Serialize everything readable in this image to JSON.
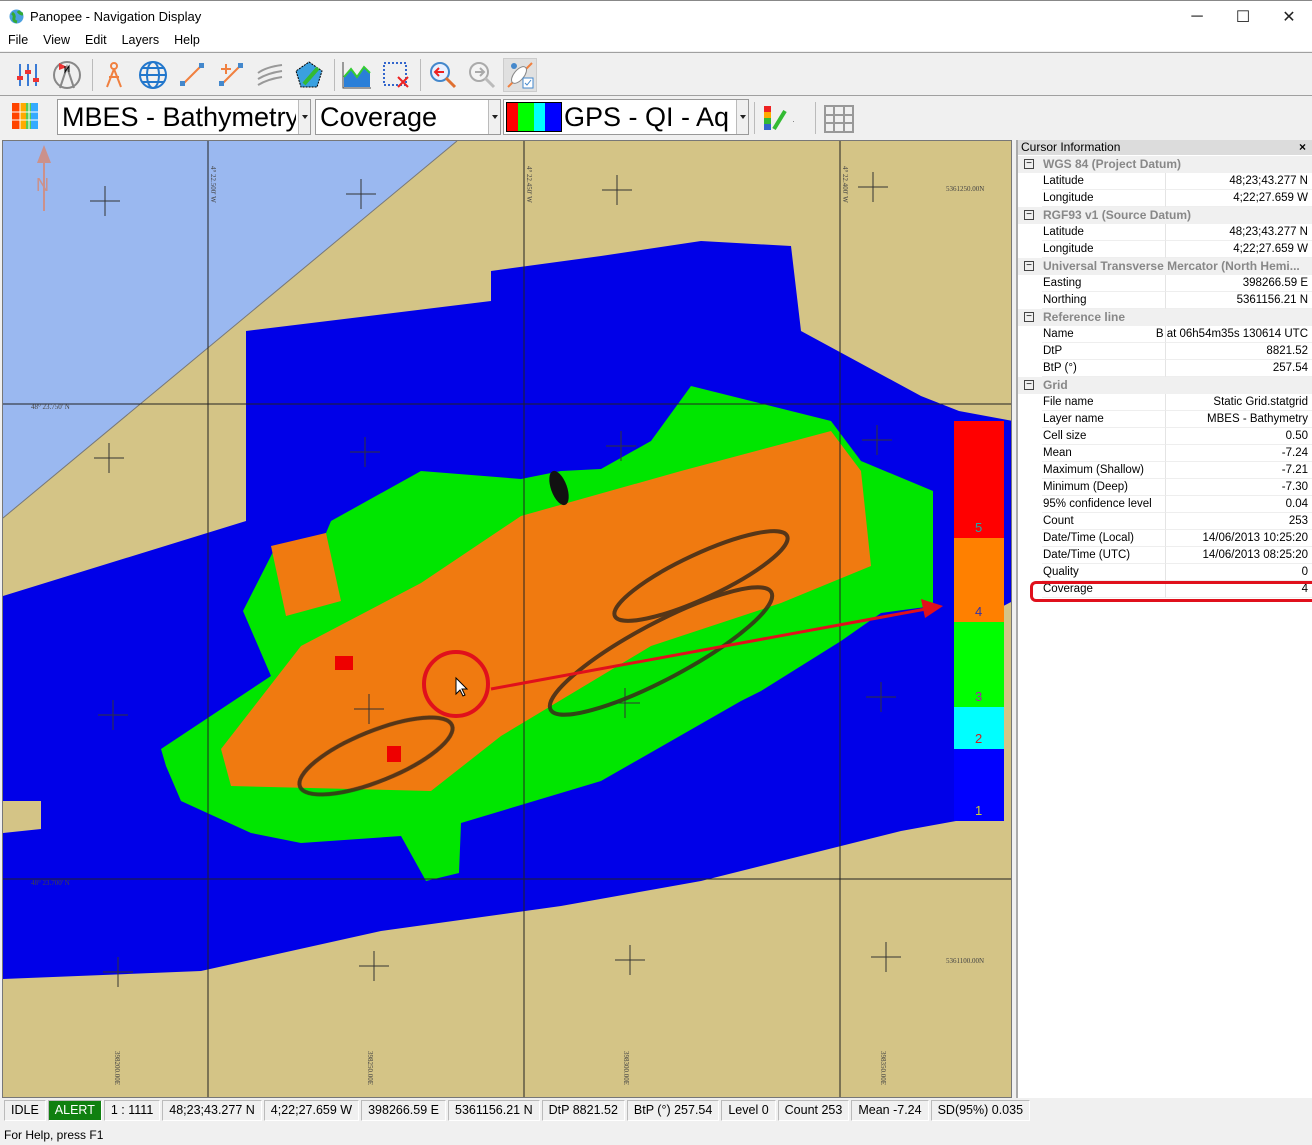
{
  "window": {
    "title": "Panopee - Navigation Display",
    "minimize": "─",
    "maximize": "☐",
    "close": "✕"
  },
  "menu": [
    "File",
    "View",
    "Edit",
    "Layers",
    "Help"
  ],
  "toolbar1": [
    "settings-sliders",
    "north-compass",
    "dividers",
    "globe",
    "line-tool",
    "add-point-line",
    "contours",
    "polygon-edit",
    "profile-chart",
    "clear-selection",
    "zoom-previous",
    "zoom-next",
    "visibility-check"
  ],
  "toolbar2": {
    "layer_combo": "MBES - Bathymetry",
    "attribute_combo": "Coverage",
    "palette_combo": "GPS - QI - Aq",
    "palette_colors": [
      "#ff0000",
      "#00ff00",
      "#00ffff",
      "#0000ff"
    ]
  },
  "map": {
    "north_label": "N",
    "lon_labels": [
      "4° 22.500' W",
      "4° 22.450' W",
      "4° 22.400' W"
    ],
    "lat_labels": [
      "48° 23.750' N",
      "48° 23.700' N"
    ],
    "northing_labels": [
      "5361250.00N",
      "5361100.00N"
    ],
    "easting_labels": [
      "398200.00E",
      "398250.00E",
      "398300.00E",
      "398350.00E"
    ],
    "legend": [
      {
        "value": "5",
        "color": "#ff0000"
      },
      {
        "value": "4",
        "color": "#ff8000"
      },
      {
        "value": "3",
        "color": "#00ff00"
      },
      {
        "value": "2",
        "color": "#00ffff"
      },
      {
        "value": "1",
        "color": "#0000ff"
      }
    ],
    "colors": {
      "water": "#9ab8f0",
      "land": "#d4c486",
      "highlight": "#e0101c"
    }
  },
  "cursor_info": {
    "title": "Cursor Information",
    "close": "×",
    "sections": [
      {
        "name": "WGS 84 (Project Datum)",
        "rows": [
          [
            "Latitude",
            "48;23;43.277 N"
          ],
          [
            "Longitude",
            "4;22;27.659 W"
          ]
        ]
      },
      {
        "name": "RGF93 v1 (Source Datum)",
        "rows": [
          [
            "Latitude",
            "48;23;43.277 N"
          ],
          [
            "Longitude",
            "4;22;27.659 W"
          ]
        ]
      },
      {
        "name": "Universal Transverse Mercator (North Hemi...",
        "rows": [
          [
            "Easting",
            "398266.59 E"
          ],
          [
            "Northing",
            "5361156.21 N"
          ]
        ]
      },
      {
        "name": "Reference line",
        "rows": [
          [
            "Name",
            "B at 06h54m35s 130614 UTC"
          ],
          [
            "DtP",
            "8821.52"
          ],
          [
            "BtP (°)",
            "257.54"
          ]
        ]
      },
      {
        "name": "Grid",
        "rows": [
          [
            "File name",
            "Static Grid.statgrid"
          ],
          [
            "Layer name",
            "MBES - Bathymetry"
          ],
          [
            "Cell size",
            "0.50"
          ],
          [
            "Mean",
            "-7.24"
          ],
          [
            "Maximum (Shallow)",
            "-7.21"
          ],
          [
            "Minimum (Deep)",
            "-7.30"
          ],
          [
            "95% confidence level",
            "0.04"
          ],
          [
            "Count",
            "253"
          ],
          [
            "Date/Time (Local)",
            "14/06/2013 10:25:20"
          ],
          [
            "Date/Time (UTC)",
            "14/06/2013 08:25:20"
          ],
          [
            "Quality",
            "0"
          ],
          [
            "Coverage",
            "4"
          ]
        ]
      }
    ]
  },
  "status": [
    "IDLE",
    "ALERT",
    "1 : 1111",
    "48;23;43.277 N",
    "4;22;27.659 W",
    "398266.59 E",
    "5361156.21 N",
    "DtP 8821.52",
    "BtP (°) 257.54",
    "Level 0",
    "Count 253",
    "Mean -7.24",
    "SD(95%) 0.035"
  ],
  "help": "For Help, press F1"
}
